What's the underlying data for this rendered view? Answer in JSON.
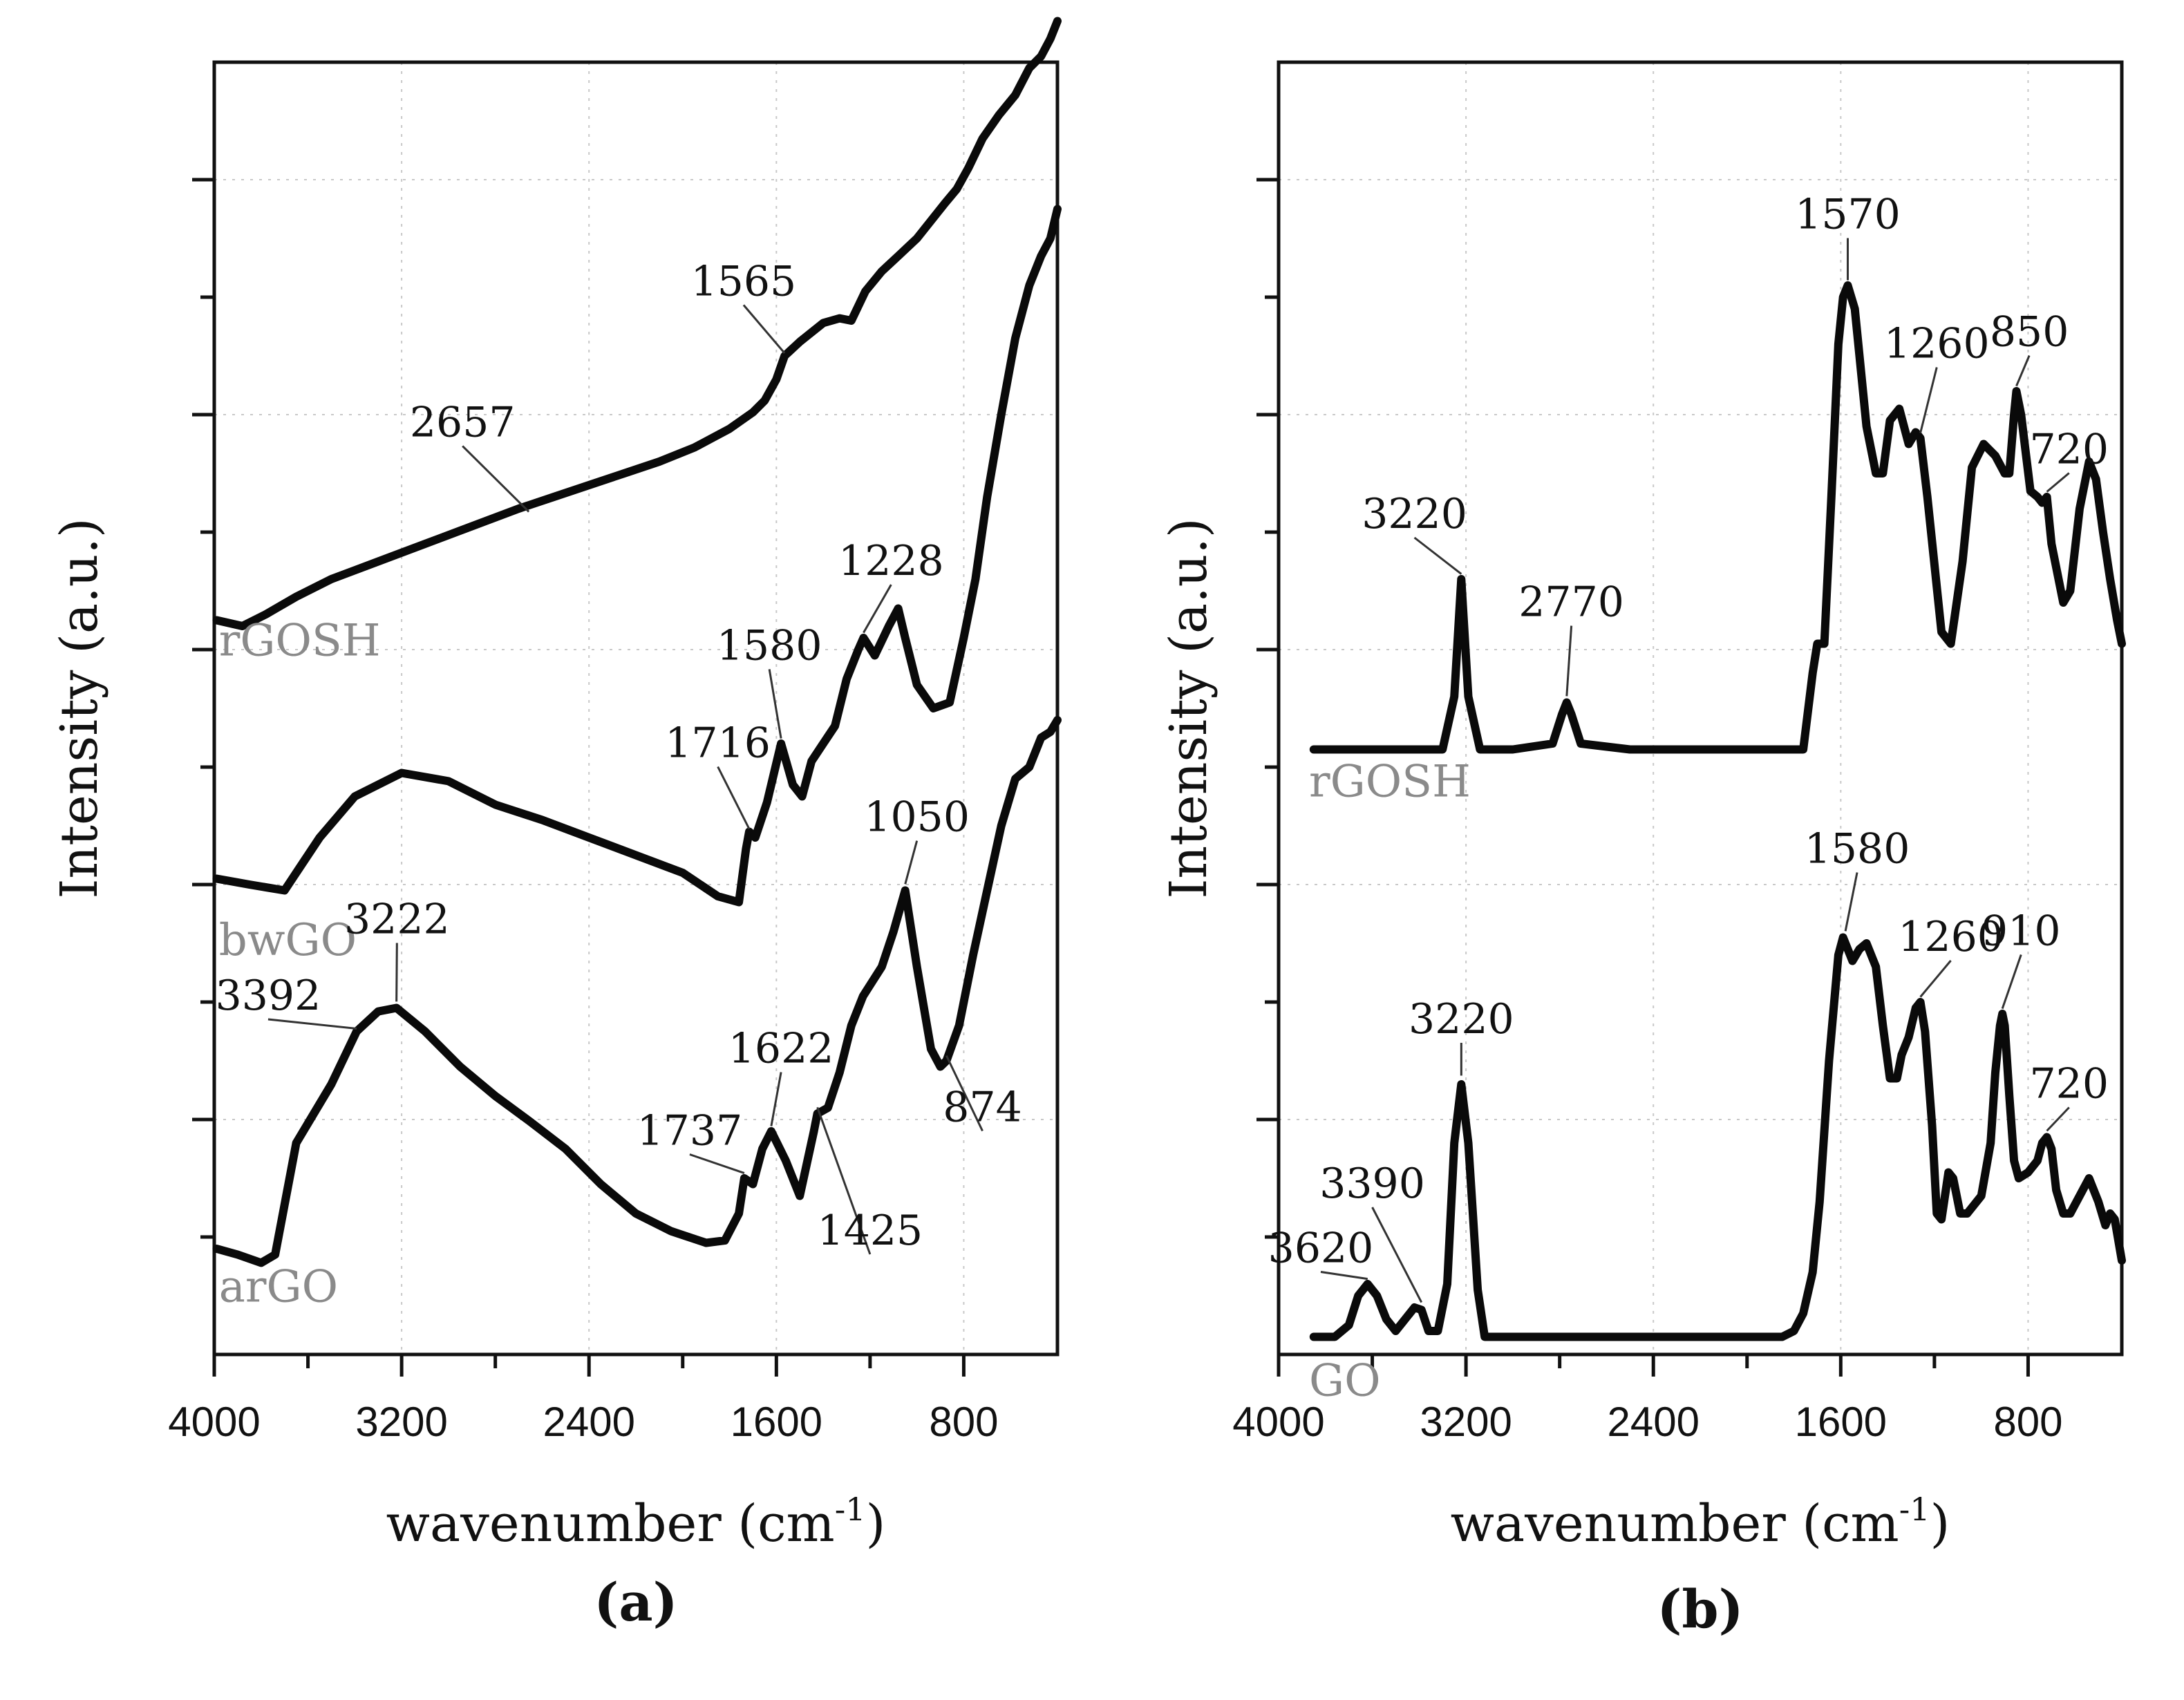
{
  "chart_data": [
    {
      "panel": "a",
      "panel_label": "(a)",
      "type": "line",
      "xlabel": "wavenumber (cm",
      "xlabel_sup": "-1",
      "xlabel_end": ")",
      "ylabel": "Intensity (a.u.)",
      "xlim": [
        4000,
        400
      ],
      "ylim": [
        0,
        11
      ],
      "xticks": [
        4000,
        3200,
        2400,
        1600,
        800
      ],
      "grid": true,
      "series": [
        {
          "name": "rGOSH",
          "x": [
            3990,
            3880,
            3780,
            3650,
            3500,
            3300,
            3100,
            2900,
            2700,
            2550,
            2400,
            2250,
            2100,
            1950,
            1800,
            1700,
            1650,
            1600,
            1565,
            1500,
            1400,
            1330,
            1280,
            1220,
            1150,
            1080,
            1000,
            940,
            880,
            830,
            780,
            720,
            650,
            580,
            520,
            470,
            430,
            400
          ],
          "y": [
            6.25,
            6.2,
            6.3,
            6.45,
            6.6,
            6.75,
            6.9,
            7.05,
            7.2,
            7.3,
            7.4,
            7.5,
            7.6,
            7.72,
            7.88,
            8.02,
            8.12,
            8.3,
            8.5,
            8.62,
            8.78,
            8.82,
            8.8,
            9.05,
            9.22,
            9.35,
            9.5,
            9.65,
            9.8,
            9.92,
            10.1,
            10.35,
            10.55,
            10.72,
            10.95,
            11.05,
            11.2,
            11.35
          ]
        },
        {
          "name": "bwGO",
          "x": [
            3990,
            3850,
            3700,
            3650,
            3550,
            3400,
            3200,
            3000,
            2800,
            2600,
            2400,
            2200,
            2000,
            1850,
            1760,
            1730,
            1716,
            1690,
            1640,
            1580,
            1530,
            1490,
            1450,
            1400,
            1350,
            1300,
            1250,
            1228,
            1180,
            1120,
            1080,
            1050,
            1000,
            930,
            860,
            800,
            750,
            700,
            640,
            580,
            520,
            470,
            430,
            400
          ],
          "y": [
            4.05,
            4.0,
            3.95,
            4.1,
            4.4,
            4.75,
            4.95,
            4.88,
            4.68,
            4.55,
            4.4,
            4.25,
            4.1,
            3.9,
            3.85,
            4.3,
            4.45,
            4.4,
            4.7,
            5.2,
            4.85,
            4.75,
            5.05,
            5.2,
            5.35,
            5.75,
            6.0,
            6.1,
            5.95,
            6.2,
            6.35,
            6.1,
            5.7,
            5.5,
            5.55,
            6.1,
            6.6,
            7.3,
            8.0,
            8.65,
            9.1,
            9.35,
            9.5,
            9.75
          ]
        },
        {
          "name": "arGO",
          "x": [
            3990,
            3900,
            3800,
            3740,
            3650,
            3500,
            3392,
            3300,
            3222,
            3100,
            2950,
            2800,
            2650,
            2500,
            2350,
            2200,
            2050,
            1900,
            1820,
            1760,
            1737,
            1700,
            1660,
            1622,
            1560,
            1500,
            1440,
            1425,
            1380,
            1330,
            1280,
            1230,
            1150,
            1100,
            1050,
            1000,
            940,
            900,
            874,
            820,
            760,
            700,
            640,
            580,
            520,
            470,
            430,
            400
          ],
          "y": [
            0.9,
            0.85,
            0.78,
            0.85,
            1.8,
            2.3,
            2.75,
            2.92,
            2.95,
            2.75,
            2.45,
            2.2,
            1.98,
            1.75,
            1.45,
            1.2,
            1.05,
            0.95,
            0.97,
            1.2,
            1.5,
            1.45,
            1.75,
            1.9,
            1.65,
            1.35,
            1.9,
            2.05,
            2.1,
            2.4,
            2.8,
            3.05,
            3.3,
            3.6,
            3.95,
            3.3,
            2.6,
            2.45,
            2.5,
            2.8,
            3.4,
            3.95,
            4.5,
            4.9,
            5.0,
            5.25,
            5.3,
            5.4
          ]
        }
      ],
      "annotations": [
        {
          "text": "2657",
          "x": 2657,
          "y": 7.15,
          "tx": 2940,
          "ty": 7.78
        },
        {
          "text": "1565",
          "x": 1565,
          "y": 8.5,
          "tx": 1740,
          "ty": 8.98
        },
        {
          "text": "1228",
          "x": 1228,
          "y": 6.12,
          "tx": 1110,
          "ty": 6.6
        },
        {
          "text": "1580",
          "x": 1580,
          "y": 5.22,
          "tx": 1630,
          "ty": 5.88
        },
        {
          "text": "1716",
          "x": 1716,
          "y": 4.45,
          "tx": 1850,
          "ty": 5.05
        },
        {
          "text": "1050",
          "x": 1050,
          "y": 3.98,
          "tx": 1000,
          "ty": 4.42
        },
        {
          "text": "3392",
          "x": 3392,
          "y": 2.75,
          "tx": 3770,
          "ty": 2.9
        },
        {
          "text": "3222",
          "x": 3222,
          "y": 2.98,
          "tx": 3220,
          "ty": 3.55
        },
        {
          "text": "1622",
          "x": 1622,
          "y": 1.92,
          "tx": 1580,
          "ty": 2.45
        },
        {
          "text": "1737",
          "x": 1737,
          "y": 1.52,
          "tx": 1970,
          "ty": 1.75
        },
        {
          "text": "874",
          "x": 874,
          "y": 2.52,
          "tx": 720,
          "ty": 1.95
        },
        {
          "text": "1425",
          "x": 1425,
          "y": 2.08,
          "tx": 1200,
          "ty": 0.9
        }
      ],
      "series_labels": [
        {
          "text": "rGOSH",
          "x": 3980,
          "y": 5.95
        },
        {
          "text": "bwGO",
          "x": 3980,
          "y": 3.4
        },
        {
          "text": "arGO",
          "x": 3980,
          "y": 0.45
        }
      ]
    },
    {
      "panel": "b",
      "panel_label": "(b)",
      "type": "line",
      "xlabel": "wavenumber (cm",
      "xlabel_sup": "-1",
      "xlabel_end": ")",
      "ylabel": "Intensity (a.u.)",
      "xlim": [
        4000,
        400
      ],
      "ylim": [
        0,
        11
      ],
      "xticks": [
        4000,
        3200,
        2400,
        1600,
        800
      ],
      "grid": true,
      "series": [
        {
          "name": "rGOSH",
          "x": [
            3850,
            3500,
            3300,
            3250,
            3220,
            3190,
            3140,
            3000,
            2830,
            2790,
            2770,
            2750,
            2710,
            2500,
            2200,
            1850,
            1760,
            1720,
            1700,
            1670,
            1640,
            1610,
            1590,
            1570,
            1540,
            1490,
            1450,
            1420,
            1390,
            1350,
            1310,
            1280,
            1260,
            1230,
            1170,
            1130,
            1080,
            1040,
            990,
            940,
            900,
            880,
            860,
            850,
            830,
            790,
            760,
            740,
            720,
            700,
            650,
            620,
            580,
            540,
            510,
            480,
            450,
            420,
            400
          ],
          "y": [
            5.15,
            5.15,
            5.15,
            5.6,
            6.6,
            5.6,
            5.15,
            5.15,
            5.2,
            5.45,
            5.55,
            5.45,
            5.2,
            5.15,
            5.15,
            5.15,
            5.15,
            5.8,
            6.05,
            6.05,
            7.3,
            8.6,
            9.0,
            9.1,
            8.9,
            7.9,
            7.5,
            7.5,
            7.95,
            8.05,
            7.75,
            7.85,
            7.8,
            7.3,
            6.15,
            6.05,
            6.75,
            7.55,
            7.75,
            7.65,
            7.5,
            7.5,
            8.0,
            8.2,
            8.0,
            7.35,
            7.3,
            7.25,
            7.3,
            6.9,
            6.4,
            6.5,
            7.2,
            7.6,
            7.45,
            7.0,
            6.6,
            6.25,
            6.05
          ]
        },
        {
          "name": "GO",
          "x": [
            3850,
            3760,
            3700,
            3660,
            3620,
            3580,
            3540,
            3500,
            3460,
            3420,
            3390,
            3360,
            3320,
            3280,
            3250,
            3220,
            3190,
            3150,
            3120,
            3050,
            2800,
            2500,
            2200,
            1850,
            1800,
            1760,
            1720,
            1690,
            1650,
            1610,
            1590,
            1570,
            1550,
            1520,
            1490,
            1450,
            1420,
            1390,
            1360,
            1340,
            1310,
            1280,
            1260,
            1240,
            1210,
            1190,
            1170,
            1140,
            1120,
            1090,
            1060,
            1000,
            960,
            940,
            920,
            910,
            900,
            880,
            860,
            840,
            800,
            760,
            740,
            720,
            700,
            680,
            650,
            620,
            580,
            540,
            500,
            470,
            450,
            430,
            400
          ],
          "y": [
            0.15,
            0.15,
            0.25,
            0.5,
            0.6,
            0.5,
            0.3,
            0.2,
            0.3,
            0.4,
            0.38,
            0.2,
            0.2,
            0.6,
            1.8,
            2.3,
            1.8,
            0.55,
            0.15,
            0.15,
            0.15,
            0.15,
            0.15,
            0.15,
            0.2,
            0.35,
            0.7,
            1.3,
            2.5,
            3.4,
            3.55,
            3.45,
            3.35,
            3.45,
            3.5,
            3.3,
            2.8,
            2.35,
            2.35,
            2.55,
            2.7,
            2.95,
            3.0,
            2.75,
            1.95,
            1.2,
            1.15,
            1.55,
            1.5,
            1.2,
            1.2,
            1.35,
            1.8,
            2.4,
            2.8,
            2.9,
            2.8,
            2.2,
            1.65,
            1.5,
            1.55,
            1.65,
            1.8,
            1.85,
            1.75,
            1.4,
            1.2,
            1.2,
            1.35,
            1.5,
            1.3,
            1.1,
            1.2,
            1.15,
            0.8
          ]
        }
      ],
      "annotations": [
        {
          "text": "3220",
          "x": 3220,
          "y": 6.62,
          "tx": 3420,
          "ty": 7.0
        },
        {
          "text": "2770",
          "x": 2770,
          "y": 5.58,
          "tx": 2750,
          "ty": 6.25
        },
        {
          "text": "1570",
          "x": 1570,
          "y": 9.12,
          "tx": 1570,
          "ty": 9.55
        },
        {
          "text": "1260",
          "x": 1260,
          "y": 7.82,
          "tx": 1190,
          "ty": 8.45
        },
        {
          "text": "850",
          "x": 850,
          "y": 8.22,
          "tx": 795,
          "ty": 8.55
        },
        {
          "text": "720",
          "x": 720,
          "y": 7.32,
          "tx": 625,
          "ty": 7.55
        },
        {
          "text": "1580",
          "x": 1580,
          "y": 3.58,
          "tx": 1530,
          "ty": 4.15
        },
        {
          "text": "1260",
          "x": 1260,
          "y": 3.02,
          "tx": 1130,
          "ty": 3.4
        },
        {
          "text": "910",
          "x": 910,
          "y": 2.92,
          "tx": 830,
          "ty": 3.45
        },
        {
          "text": "720",
          "x": 720,
          "y": 1.88,
          "tx": 625,
          "ty": 2.15
        },
        {
          "text": "3220",
          "x": 3220,
          "y": 2.35,
          "tx": 3220,
          "ty": 2.7
        },
        {
          "text": "3390",
          "x": 3390,
          "y": 0.42,
          "tx": 3600,
          "ty": 1.3
        },
        {
          "text": "3620",
          "x": 3620,
          "y": 0.62,
          "tx": 3820,
          "ty": 0.75
        }
      ],
      "series_labels": [
        {
          "text": "rGOSH",
          "x": 3870,
          "y": 4.75
        },
        {
          "text": "GO",
          "x": 3870,
          "y": -0.35
        }
      ]
    }
  ]
}
